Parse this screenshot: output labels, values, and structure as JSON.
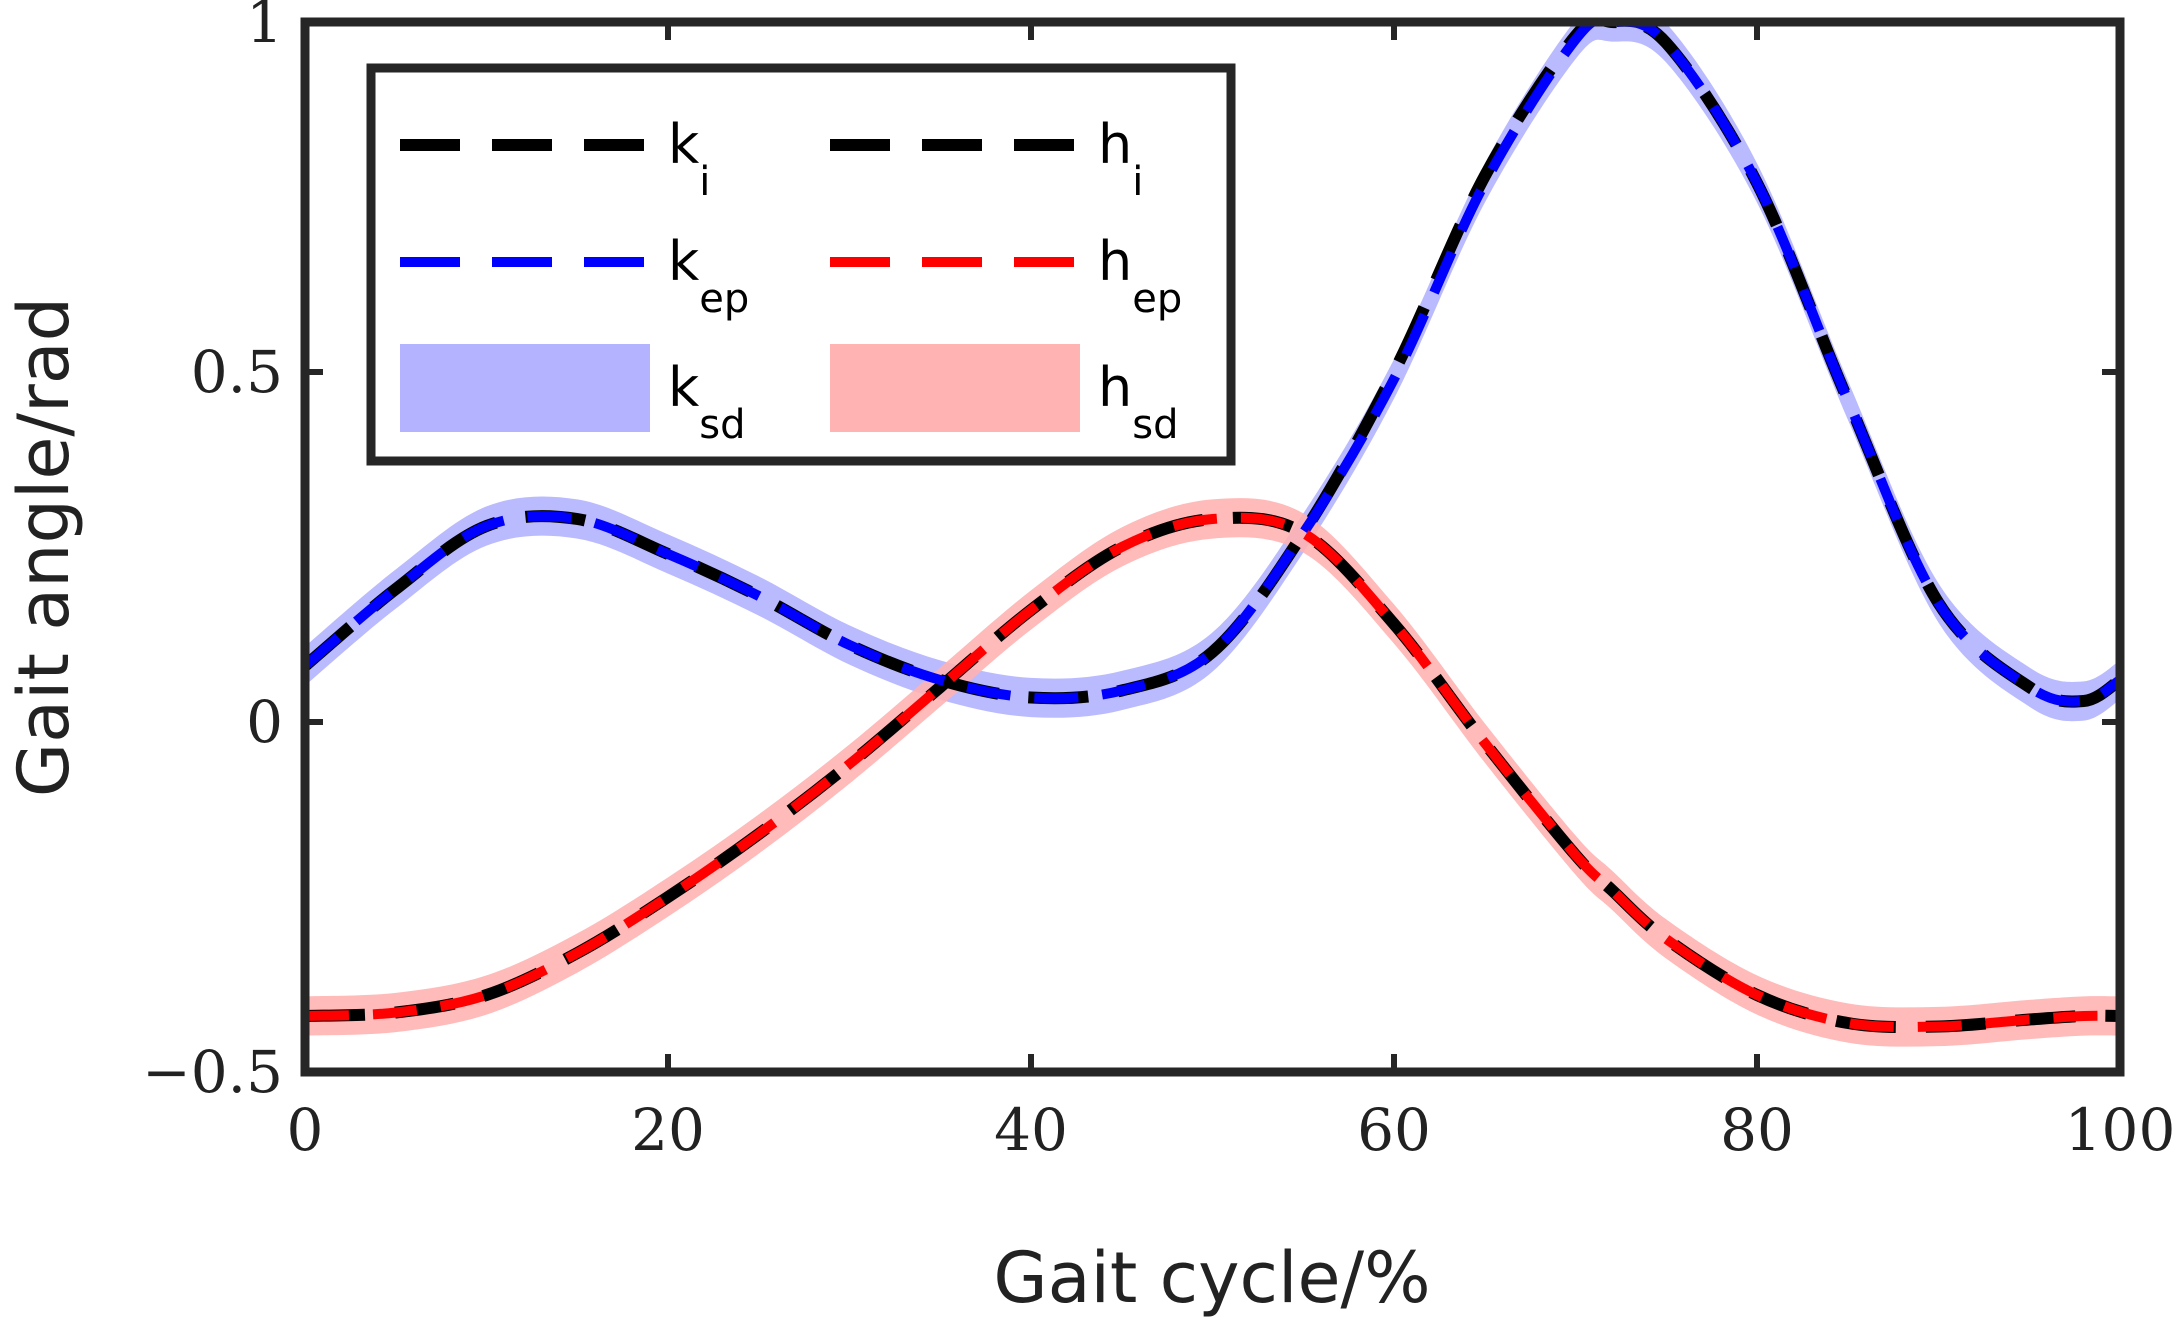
{
  "chart_data": {
    "type": "line",
    "xlabel": "Gait cycle/%",
    "ylabel": "Gait angle/rad",
    "xlim": [
      0,
      100
    ],
    "ylim": [
      -0.5,
      1.0
    ],
    "xticks": [
      0,
      20,
      40,
      60,
      80,
      100
    ],
    "yticks": [
      -0.5,
      0,
      0.5,
      1
    ],
    "ytick_labels": [
      "−0.5",
      "0",
      "0.5",
      "1"
    ],
    "grid": false,
    "legend_position": "top-left",
    "x": [
      0,
      5,
      10,
      15,
      20,
      25,
      30,
      35,
      40,
      45,
      50,
      55,
      60,
      65,
      70,
      72,
      75,
      80,
      85,
      90,
      95,
      98,
      100
    ],
    "series": [
      {
        "name": "k_i",
        "legend_main": "k",
        "legend_sub": "i",
        "style": "dashed",
        "color": "#000000",
        "values": [
          0.08,
          0.19,
          0.28,
          0.29,
          0.24,
          0.18,
          0.11,
          0.06,
          0.035,
          0.045,
          0.1,
          0.27,
          0.5,
          0.78,
          0.98,
          1.0,
          0.97,
          0.77,
          0.46,
          0.17,
          0.05,
          0.03,
          0.06
        ]
      },
      {
        "name": "h_i",
        "legend_main": "h",
        "legend_sub": "i",
        "style": "dashed",
        "color": "#000000",
        "values": [
          -0.42,
          -0.415,
          -0.39,
          -0.33,
          -0.25,
          -0.16,
          -0.06,
          0.05,
          0.16,
          0.25,
          0.29,
          0.27,
          0.14,
          -0.03,
          -0.19,
          -0.24,
          -0.31,
          -0.39,
          -0.43,
          -0.435,
          -0.425,
          -0.42,
          -0.42
        ]
      },
      {
        "name": "k_ep",
        "legend_main": "k",
        "legend_sub": "ep",
        "style": "dashed",
        "color": "#0000ff",
        "values": [
          0.08,
          0.19,
          0.28,
          0.29,
          0.24,
          0.18,
          0.11,
          0.06,
          0.035,
          0.045,
          0.1,
          0.27,
          0.49,
          0.77,
          0.975,
          1.0,
          0.97,
          0.77,
          0.46,
          0.17,
          0.05,
          0.03,
          0.06
        ]
      },
      {
        "name": "h_ep",
        "legend_main": "h",
        "legend_sub": "ep",
        "style": "dashed",
        "color": "#ff0000",
        "values": [
          -0.42,
          -0.415,
          -0.39,
          -0.33,
          -0.25,
          -0.16,
          -0.06,
          0.05,
          0.16,
          0.25,
          0.29,
          0.27,
          0.14,
          -0.03,
          -0.19,
          -0.24,
          -0.31,
          -0.39,
          -0.43,
          -0.435,
          -0.425,
          -0.42,
          -0.42
        ]
      },
      {
        "name": "k_sd",
        "legend_main": "k",
        "legend_sub": "sd",
        "style": "band",
        "color": "#b3b3ff",
        "spread": 0.028,
        "values": [
          0.08,
          0.19,
          0.28,
          0.29,
          0.24,
          0.18,
          0.11,
          0.06,
          0.035,
          0.045,
          0.1,
          0.27,
          0.49,
          0.77,
          0.975,
          1.0,
          0.97,
          0.77,
          0.46,
          0.17,
          0.05,
          0.03,
          0.06
        ]
      },
      {
        "name": "h_sd",
        "legend_main": "h",
        "legend_sub": "sd",
        "style": "band",
        "color": "#ffb3b3",
        "spread": 0.028,
        "values": [
          -0.42,
          -0.415,
          -0.39,
          -0.33,
          -0.25,
          -0.16,
          -0.06,
          0.05,
          0.16,
          0.25,
          0.29,
          0.27,
          0.14,
          -0.03,
          -0.19,
          -0.24,
          -0.31,
          -0.39,
          -0.43,
          -0.435,
          -0.425,
          -0.42,
          -0.42
        ]
      }
    ]
  }
}
